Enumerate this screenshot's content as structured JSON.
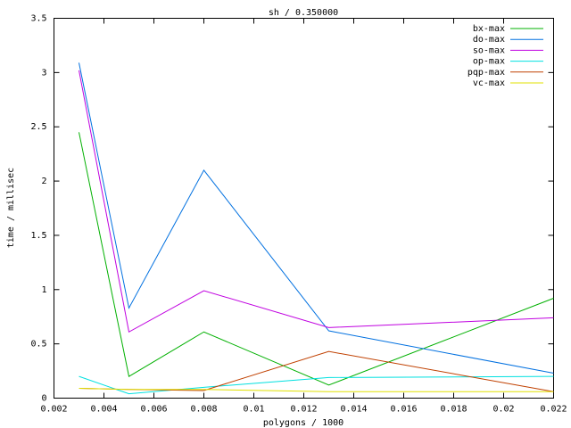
{
  "chart_data": {
    "type": "line",
    "title": "sh / 0.350000",
    "x_label": "polygons / 1000",
    "y_label": "time / millisec",
    "x": [
      0.003,
      0.005,
      0.008,
      0.013,
      0.022
    ],
    "series": [
      {
        "name": "bx-max",
        "color": "#00b000",
        "values": [
          2.45,
          0.2,
          0.61,
          0.12,
          0.92
        ]
      },
      {
        "name": "do-max",
        "color": "#0070e0",
        "values": [
          3.09,
          0.83,
          2.1,
          0.62,
          0.23
        ]
      },
      {
        "name": "so-max",
        "color": "#c000e0",
        "values": [
          3.02,
          0.61,
          0.99,
          0.65,
          0.74
        ]
      },
      {
        "name": "op-max",
        "color": "#00e0e0",
        "values": [
          0.2,
          0.04,
          0.1,
          0.19,
          0.2
        ]
      },
      {
        "name": "pqp-max",
        "color": "#c04000",
        "values": [
          0.09,
          0.08,
          0.07,
          0.43,
          0.06
        ]
      },
      {
        "name": "vc-max",
        "color": "#e0e000",
        "values": [
          0.09,
          0.08,
          0.08,
          0.06,
          0.06
        ]
      }
    ],
    "xlim": [
      0.002,
      0.022
    ],
    "xticks": [
      0.002,
      0.004,
      0.006,
      0.008,
      0.01,
      0.012,
      0.014,
      0.016,
      0.018,
      0.02,
      0.022
    ],
    "ylim": [
      0,
      3.5
    ],
    "yticks": [
      0,
      0.5,
      1,
      1.5,
      2,
      2.5,
      3,
      3.5
    ],
    "grid": false,
    "legend": "top-right"
  }
}
